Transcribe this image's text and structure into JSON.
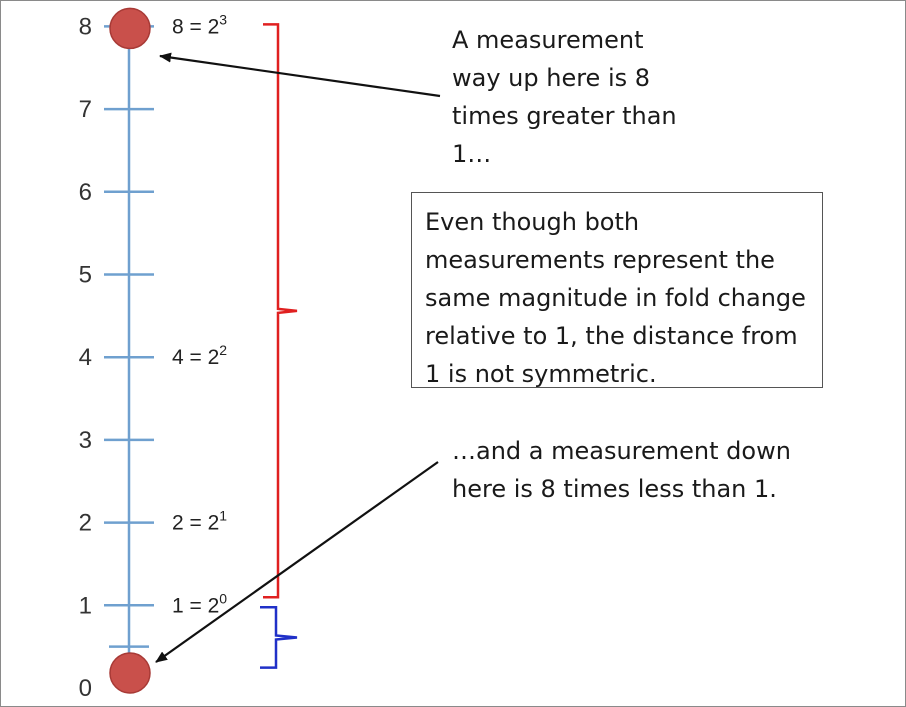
{
  "axis": {
    "ticks": [
      {
        "value": 0,
        "label": "0"
      },
      {
        "value": 1,
        "label": "1"
      },
      {
        "value": 2,
        "label": "2"
      },
      {
        "value": 3,
        "label": "3"
      },
      {
        "value": 4,
        "label": "4"
      },
      {
        "value": 5,
        "label": "5"
      },
      {
        "value": 6,
        "label": "6"
      },
      {
        "value": 7,
        "label": "7"
      },
      {
        "value": 8,
        "label": "8"
      }
    ],
    "line_color": "#6fa0cf"
  },
  "equations": [
    {
      "value": 8,
      "base": "8 = 2",
      "exp": "3"
    },
    {
      "value": 4,
      "base": "4 = 2",
      "exp": "2"
    },
    {
      "value": 2,
      "base": "2 = 2",
      "exp": "1"
    },
    {
      "value": 1,
      "base": "1 = 2",
      "exp": "0"
    }
  ],
  "points": [
    {
      "value": 8,
      "color": "#c9504b"
    },
    {
      "value": 0.125,
      "color": "#c9504b"
    }
  ],
  "braces": {
    "upper": {
      "from": 1,
      "to": 8,
      "color": "#e02020"
    },
    "lower": {
      "from": 0.125,
      "to": 1,
      "color": "#2030c8"
    }
  },
  "callouts": {
    "top": "A measurement\nway up here is 8\ntimes greater than\n1…",
    "box": "Even though both\nmeasurements represent the\nsame magnitude in fold change\nrelative to 1, the distance from\n1 is not symmetric.",
    "bottom": "…and a measurement down\nhere is 8 times less than 1."
  }
}
